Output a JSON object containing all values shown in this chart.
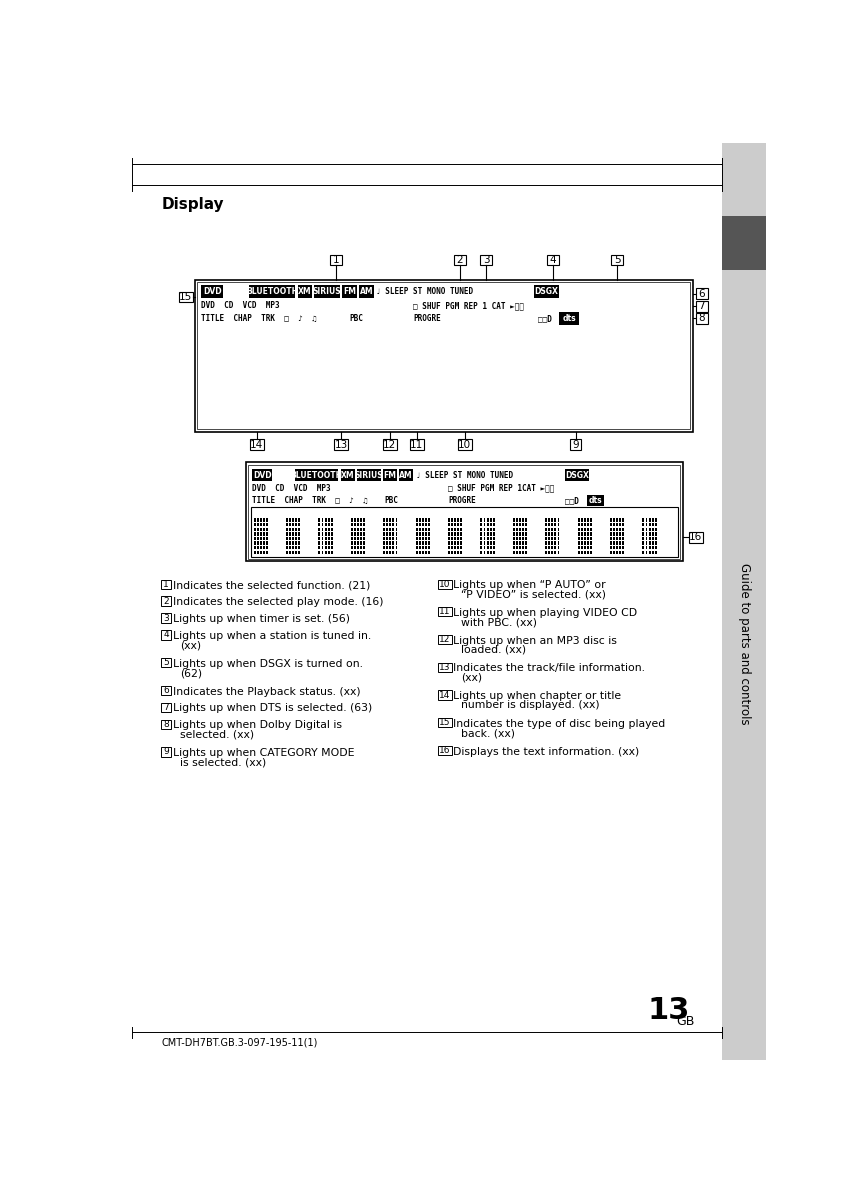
{
  "title": "Display",
  "page_num": "13",
  "page_suffix": "GB",
  "footer": "CMT-DH7BT.GB.3-097-195-11(1)",
  "sidebar_text": "Guide to parts and controls",
  "bg_color": "#ffffff",
  "sidebar_bg": "#cccccc",
  "sidebar_dark": "#555555",
  "descriptions_left": [
    {
      "n": "1",
      "text": "Indicates the selected function. (21)",
      "wrap": false
    },
    {
      "n": "2",
      "text": "Indicates the selected play mode. (16)",
      "wrap": false
    },
    {
      "n": "3",
      "text": "Lights up when timer is set. (56)",
      "wrap": false
    },
    {
      "n": "4",
      "text": "Lights up when a station is tuned in.",
      "wrap": true,
      "line2": "(xx)"
    },
    {
      "n": "5",
      "text": "Lights up when DSGX is turned on.",
      "wrap": true,
      "line2": "(62)"
    },
    {
      "n": "6",
      "text": "Indicates the Playback status. (xx)",
      "wrap": false
    },
    {
      "n": "7",
      "text": "Lights up when DTS is selected. (63)",
      "wrap": false
    },
    {
      "n": "8",
      "text": "Lights up when Dolby Digital is",
      "wrap": true,
      "line2": "selected. (xx)"
    },
    {
      "n": "9",
      "text": "Lights up when CATEGORY MODE",
      "wrap": true,
      "line2": "is selected. (xx)"
    }
  ],
  "descriptions_right": [
    {
      "n": "10",
      "text": "Lights up when “P AUTO” or",
      "wrap": true,
      "line2": "“P VIDEO” is selected. (xx)"
    },
    {
      "n": "11",
      "text": "Lights up when playing VIDEO CD",
      "wrap": true,
      "line2": "with PBC. (xx)"
    },
    {
      "n": "12",
      "text": "Lights up when an MP3 disc is",
      "wrap": true,
      "line2": "loaded. (xx)"
    },
    {
      "n": "13",
      "text": "Indicates the track/file information.",
      "wrap": true,
      "line2": "(xx)"
    },
    {
      "n": "14",
      "text": "Lights up when chapter or title",
      "wrap": true,
      "line2": "number is displayed. (xx)"
    },
    {
      "n": "15",
      "text": "Indicates the type of disc being played",
      "wrap": true,
      "line2": "back. (xx)"
    },
    {
      "n": "16",
      "text": "Displays the text information. (xx)",
      "wrap": false
    }
  ]
}
